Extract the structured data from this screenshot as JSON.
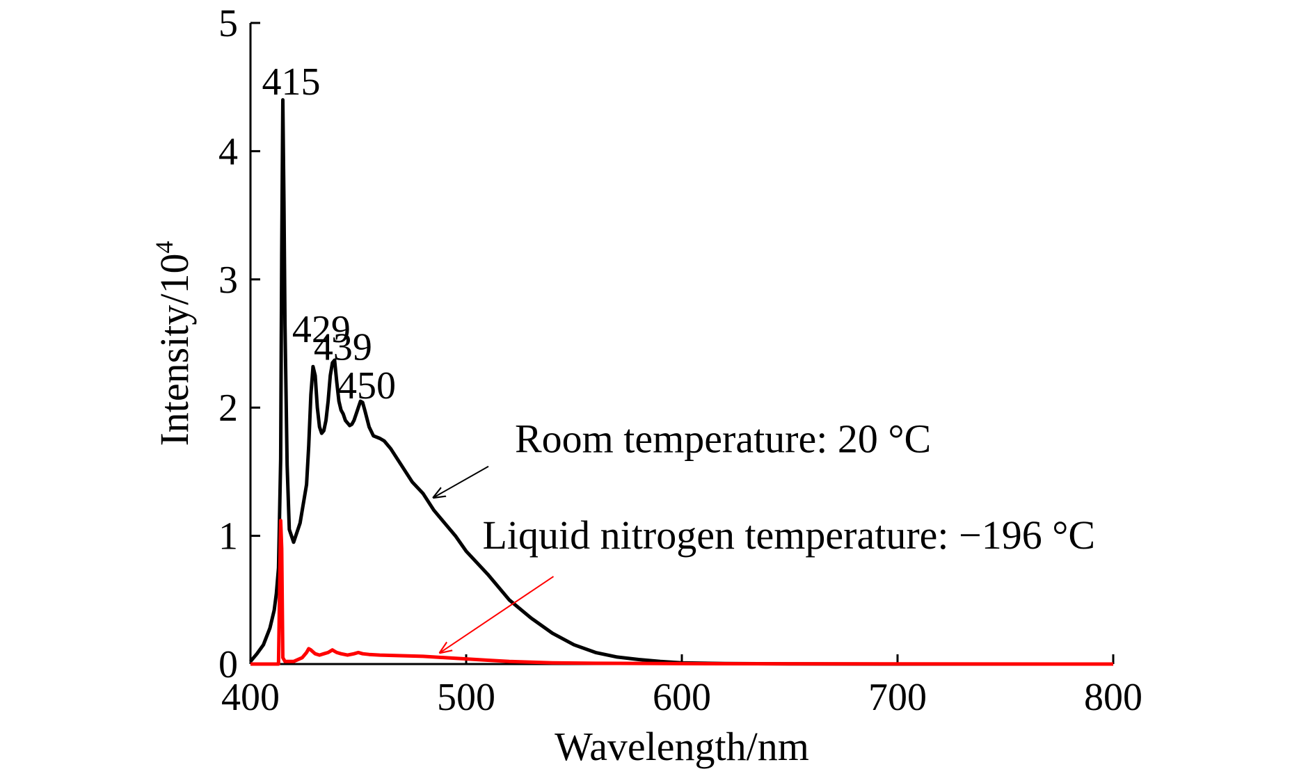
{
  "chart_data": {
    "type": "line",
    "title": "",
    "xlabel": "Wavelength/nm",
    "ylabel_base": "Intensity/10",
    "ylabel_exp": "4",
    "xlim": [
      400,
      800
    ],
    "ylim": [
      0,
      5
    ],
    "xticks": [
      400,
      500,
      600,
      700,
      800
    ],
    "yticks": [
      0,
      1,
      2,
      3,
      4,
      5
    ],
    "grid": false,
    "series": [
      {
        "key": "room",
        "color": "#000000",
        "x": [
          400,
          403,
          406,
          409,
          411,
          412,
          413,
          414,
          414.5,
          415,
          415.5,
          416,
          417,
          418,
          420,
          422,
          423,
          424,
          425,
          426,
          427,
          428,
          429,
          430,
          431,
          432,
          433,
          434,
          435,
          436,
          437,
          438,
          439,
          440,
          441,
          442,
          443,
          444,
          445,
          446,
          447,
          448,
          449,
          450,
          451,
          452,
          453,
          455,
          457,
          460,
          462,
          465,
          470,
          475,
          480,
          485,
          490,
          495,
          500,
          510,
          520,
          530,
          540,
          550,
          560,
          570,
          580,
          590,
          600,
          620,
          650,
          700,
          800
        ],
        "y": [
          0.02,
          0.08,
          0.15,
          0.28,
          0.42,
          0.55,
          0.75,
          1.6,
          3.2,
          4.4,
          3.6,
          2.65,
          1.55,
          1.05,
          0.95,
          1.05,
          1.1,
          1.2,
          1.3,
          1.4,
          1.7,
          2.1,
          2.32,
          2.25,
          2.0,
          1.85,
          1.8,
          1.82,
          1.9,
          2.05,
          2.25,
          2.35,
          2.37,
          2.2,
          2.05,
          1.98,
          1.95,
          1.9,
          1.88,
          1.86,
          1.87,
          1.9,
          1.95,
          2.0,
          2.05,
          2.04,
          1.98,
          1.85,
          1.78,
          1.76,
          1.74,
          1.68,
          1.55,
          1.42,
          1.33,
          1.2,
          1.1,
          1.0,
          0.88,
          0.7,
          0.5,
          0.36,
          0.24,
          0.15,
          0.09,
          0.055,
          0.035,
          0.02,
          0.01,
          0.004,
          0.001,
          0.0,
          0.0
        ]
      },
      {
        "key": "liquid_nitrogen",
        "color": "#ff0000",
        "x": [
          400,
          405,
          410,
          413,
          413.5,
          414,
          414.5,
          415,
          416,
          420,
          424,
          426,
          427,
          428,
          430,
          432,
          434,
          436,
          438,
          439,
          440,
          442,
          445,
          448,
          450,
          452,
          455,
          460,
          470,
          480,
          490,
          500,
          510,
          520,
          530,
          540,
          560,
          600,
          650,
          700,
          800
        ],
        "y": [
          0.0,
          0.0,
          0.0,
          0.0,
          0.6,
          1.12,
          0.9,
          0.05,
          0.02,
          0.02,
          0.05,
          0.09,
          0.12,
          0.11,
          0.08,
          0.07,
          0.08,
          0.09,
          0.11,
          0.1,
          0.09,
          0.08,
          0.07,
          0.08,
          0.09,
          0.08,
          0.075,
          0.07,
          0.065,
          0.06,
          0.05,
          0.04,
          0.03,
          0.02,
          0.015,
          0.01,
          0.006,
          0.003,
          0.002,
          0.001,
          0.0
        ]
      }
    ],
    "peak_labels": [
      {
        "text": "415",
        "x": 415,
        "y": 4.55
      },
      {
        "text": "429",
        "x": 429,
        "y": 2.62
      },
      {
        "text": "439",
        "x": 439,
        "y": 2.48
      },
      {
        "text": "450",
        "x": 450,
        "y": 2.18
      }
    ],
    "annotations": [
      {
        "text": "Room temperature: 20 °C",
        "color": "#000000",
        "x": 520,
        "y": 1.65,
        "arrow_to": [
          485,
          1.3
        ]
      },
      {
        "text": "Liquid nitrogen temperature: −196 °C",
        "color": "#ff0000",
        "text_color": "#000000",
        "x": 505,
        "y": 0.9,
        "arrow_to": [
          488,
          0.09
        ]
      }
    ]
  }
}
